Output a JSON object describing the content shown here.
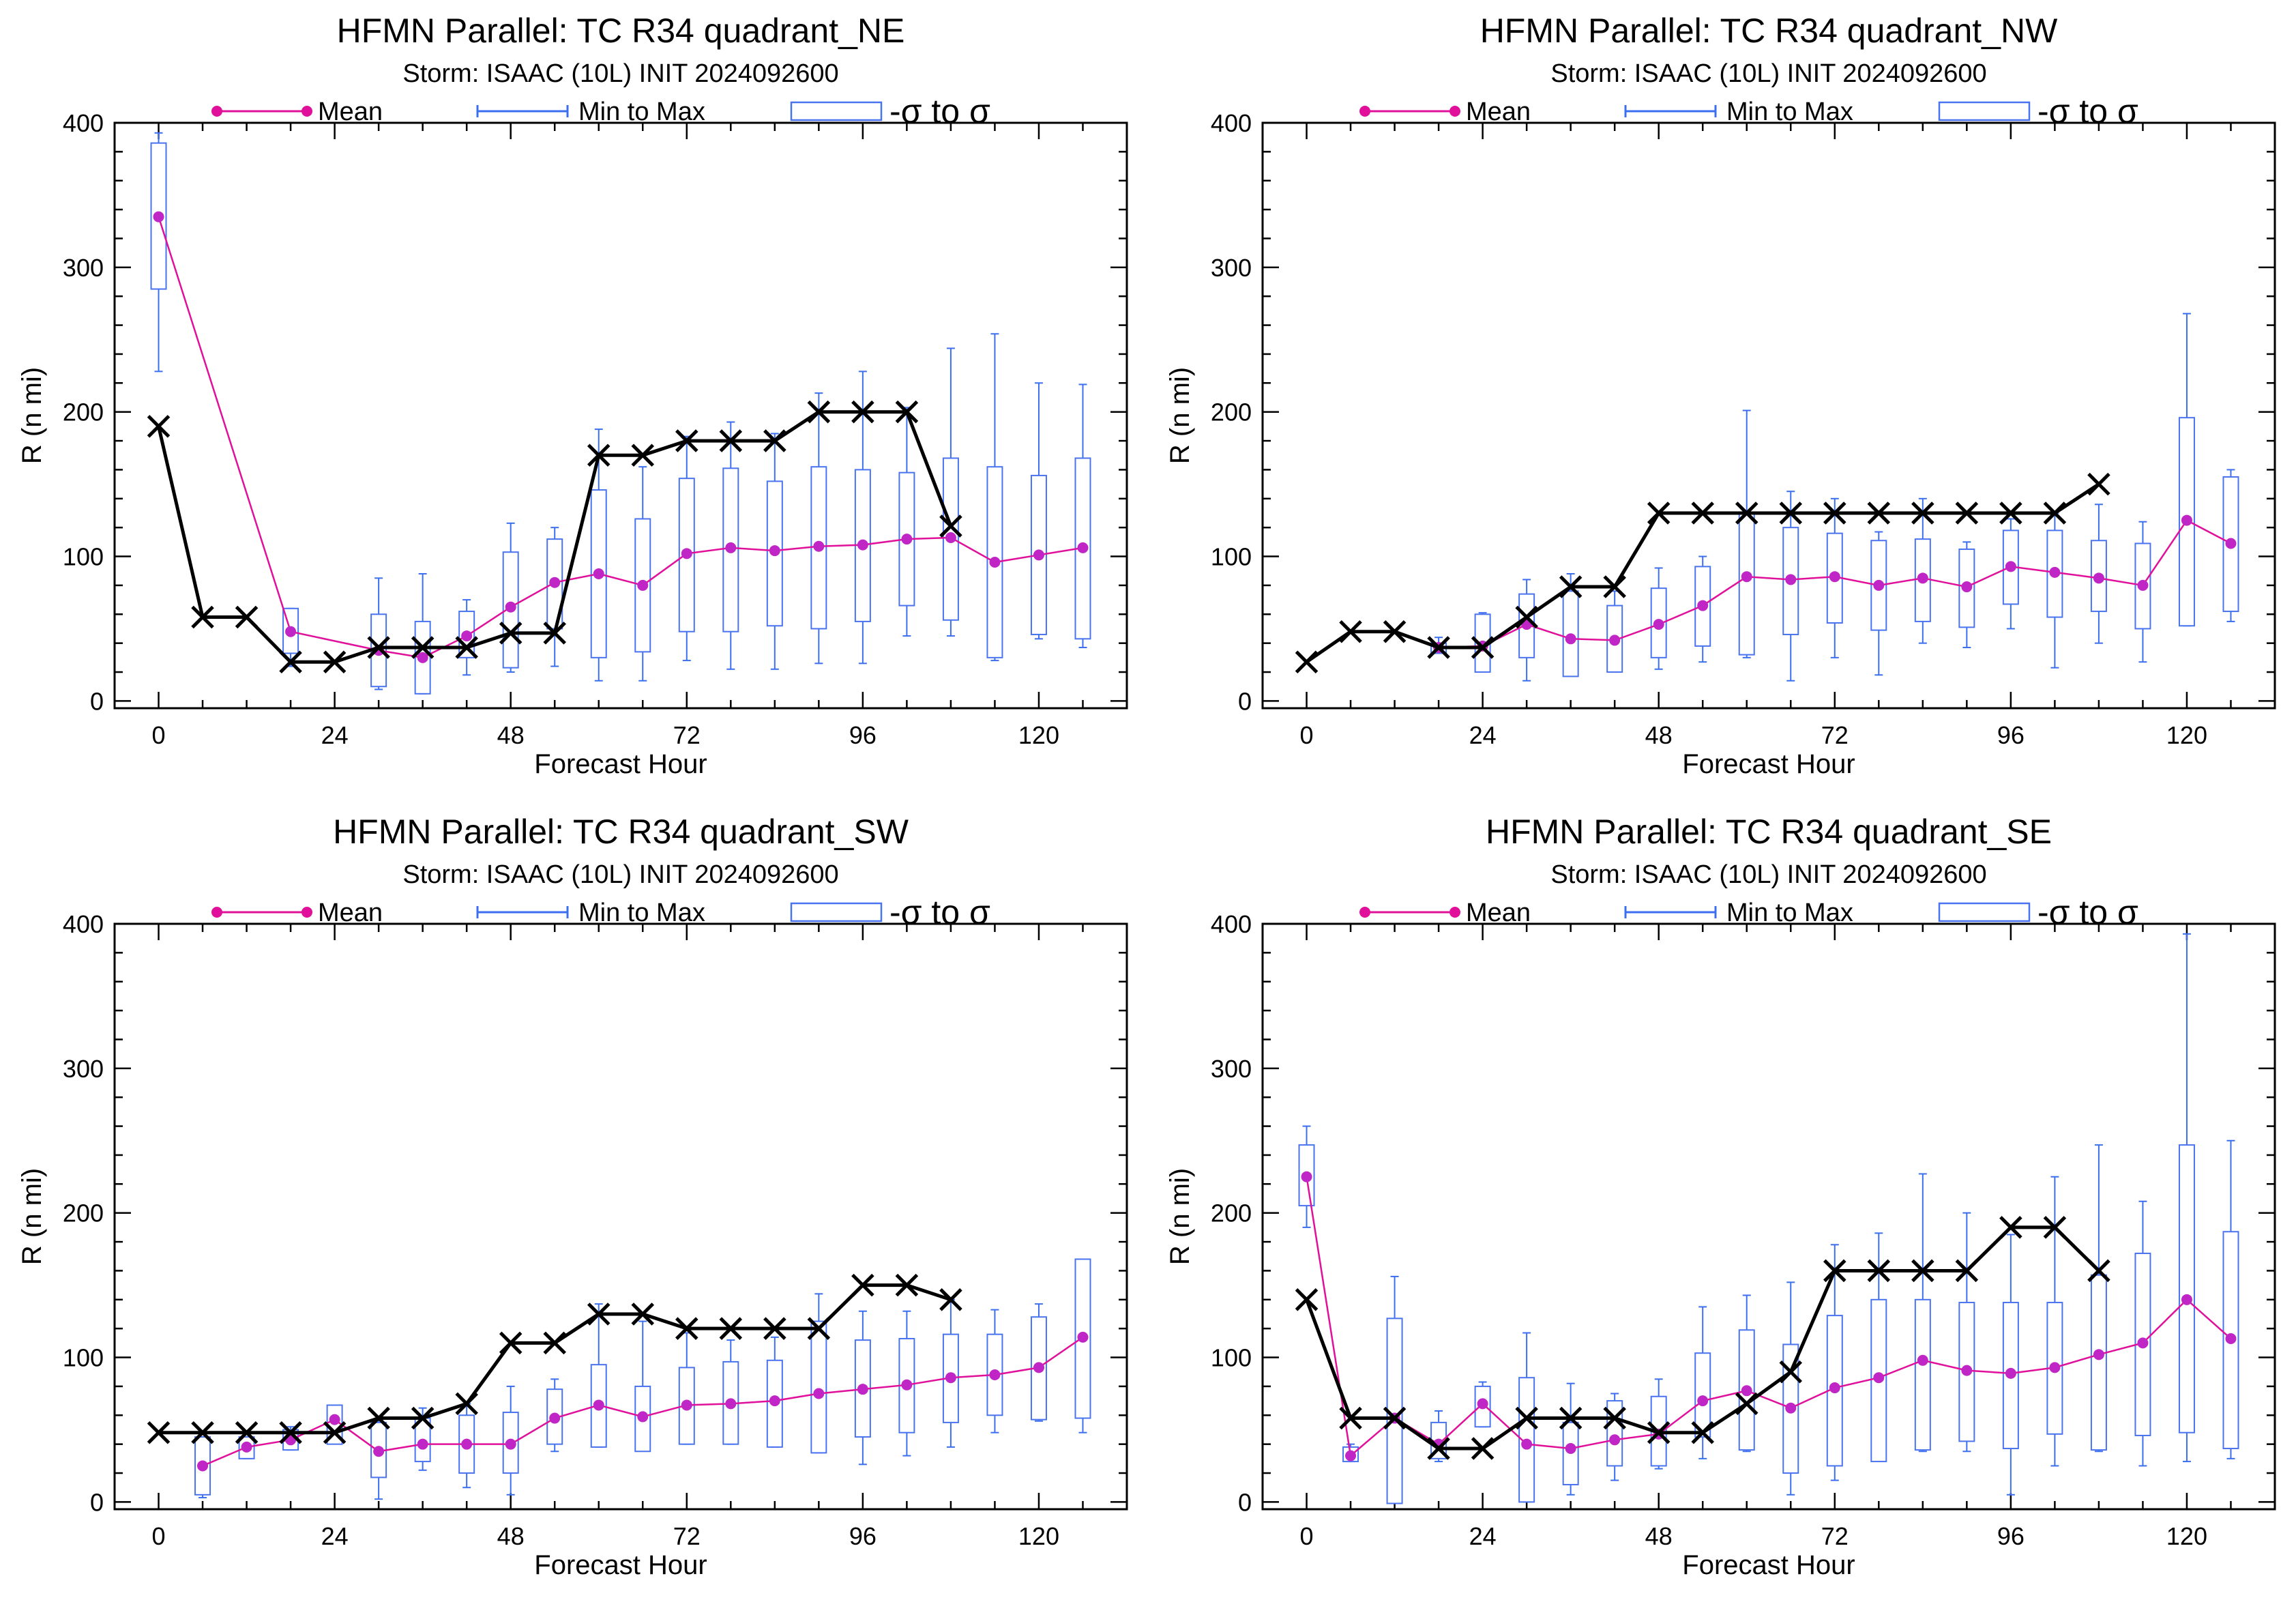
{
  "colors": {
    "mean": "#e0109a",
    "mean_marker": "#c026c6",
    "range": "#3b6ff0",
    "sigma_box": "#4a73f0",
    "observed": "#000000"
  },
  "legend_labels": {
    "mean": "Mean",
    "range": "Min to Max",
    "sigma": "-σ to σ"
  },
  "chart_data": [
    {
      "type": "box",
      "title": "HFMN Parallel: TC  R34 quadrant_NE",
      "subtitle": "Storm: ISAAC (10L) INIT 2024092600",
      "xlabel": "Forecast Hour",
      "ylabel": "R (n mi)",
      "xlim": [
        -6,
        132
      ],
      "ylim": [
        -5,
        400
      ],
      "xticks": [
        "0",
        "24",
        "48",
        "72",
        "96",
        "120"
      ],
      "yticks": [
        "0",
        "100",
        "200",
        "300",
        "400"
      ],
      "grid": false,
      "legend_position": "top",
      "forecast": {
        "x": [
          0,
          18,
          30,
          36,
          42,
          48,
          54,
          60,
          66,
          72,
          78,
          84,
          90,
          96,
          102,
          108,
          114,
          120,
          126
        ],
        "mean": [
          335,
          48,
          35,
          30,
          45,
          65,
          82,
          88,
          80,
          102,
          106,
          104,
          107,
          108,
          112,
          113,
          96,
          101,
          106
        ],
        "min": [
          228,
          24,
          8,
          5,
          18,
          20,
          24,
          14,
          14,
          28,
          22,
          22,
          26,
          26,
          45,
          45,
          28,
          43,
          37
        ],
        "max": [
          393,
          64,
          85,
          88,
          70,
          123,
          120,
          188,
          162,
          183,
          193,
          185,
          213,
          228,
          203,
          244,
          254,
          220,
          219
        ],
        "sd_low": [
          285,
          33,
          10,
          5,
          30,
          23,
          50,
          30,
          34,
          48,
          48,
          52,
          50,
          55,
          66,
          56,
          30,
          46,
          43
        ],
        "sd_high": [
          386,
          64,
          60,
          55,
          62,
          103,
          112,
          146,
          126,
          154,
          161,
          152,
          162,
          160,
          158,
          168,
          162,
          156,
          168
        ]
      },
      "observed": {
        "x": [
          0,
          6,
          12,
          18,
          24,
          30,
          36,
          42,
          48,
          54,
          60,
          66,
          72,
          78,
          84,
          90,
          96,
          102,
          108
        ],
        "y": [
          190,
          58,
          58,
          27,
          27,
          37,
          37,
          37,
          47,
          47,
          170,
          170,
          180,
          180,
          180,
          200,
          200,
          200,
          121
        ]
      }
    },
    {
      "type": "box",
      "title": "HFMN Parallel: TC  R34 quadrant_NW",
      "subtitle": "Storm: ISAAC (10L) INIT 2024092600",
      "xlabel": "Forecast Hour",
      "ylabel": "R (n mi)",
      "xlim": [
        -6,
        132
      ],
      "ylim": [
        -5,
        400
      ],
      "xticks": [
        "0",
        "24",
        "48",
        "72",
        "96",
        "120"
      ],
      "yticks": [
        "0",
        "100",
        "200",
        "300",
        "400"
      ],
      "grid": false,
      "legend_position": "top",
      "forecast": {
        "x": [
          18,
          24,
          30,
          36,
          42,
          48,
          54,
          60,
          66,
          72,
          78,
          84,
          90,
          96,
          102,
          108,
          114,
          120,
          126
        ],
        "mean": [
          37,
          38,
          53,
          43,
          42,
          53,
          66,
          86,
          84,
          86,
          80,
          85,
          79,
          93,
          89,
          85,
          80,
          125,
          109
        ],
        "min": [
          33,
          21,
          14,
          18,
          20,
          22,
          27,
          30,
          14,
          30,
          18,
          40,
          37,
          50,
          23,
          40,
          27,
          52,
          55
        ],
        "max": [
          44,
          61,
          84,
          88,
          76,
          92,
          100,
          201,
          145,
          140,
          117,
          140,
          110,
          126,
          130,
          136,
          124,
          268,
          160
        ],
        "sd_low": [
          33,
          20,
          30,
          17,
          20,
          30,
          38,
          32,
          46,
          54,
          49,
          55,
          51,
          67,
          58,
          62,
          50,
          52,
          62
        ],
        "sd_high": [
          40,
          60,
          74,
          76,
          66,
          78,
          93,
          130,
          120,
          116,
          111,
          112,
          105,
          118,
          118,
          111,
          109,
          196,
          155
        ]
      },
      "observed": {
        "x": [
          0,
          6,
          12,
          18,
          24,
          30,
          36,
          42,
          48,
          54,
          60,
          66,
          72,
          78,
          84,
          90,
          96,
          102,
          108
        ],
        "y": [
          27,
          48,
          48,
          37,
          37,
          58,
          79,
          79,
          130,
          130,
          130,
          130,
          130,
          130,
          130,
          130,
          130,
          130,
          150
        ]
      }
    },
    {
      "type": "box",
      "title": "HFMN Parallel: TC  R34 quadrant_SW",
      "subtitle": "Storm: ISAAC (10L) INIT 2024092600",
      "xlabel": "Forecast Hour",
      "ylabel": "R (n mi)",
      "xlim": [
        -6,
        132
      ],
      "ylim": [
        -5,
        400
      ],
      "xticks": [
        "0",
        "24",
        "48",
        "72",
        "96",
        "120"
      ],
      "yticks": [
        "0",
        "100",
        "200",
        "300",
        "400"
      ],
      "grid": false,
      "legend_position": "top",
      "forecast": {
        "x": [
          6,
          12,
          18,
          24,
          30,
          36,
          42,
          48,
          54,
          60,
          66,
          72,
          78,
          84,
          90,
          96,
          102,
          108,
          114,
          120,
          126
        ],
        "mean": [
          25,
          38,
          43,
          57,
          35,
          40,
          40,
          40,
          58,
          67,
          59,
          67,
          68,
          70,
          75,
          78,
          81,
          86,
          88,
          93,
          114
        ],
        "min": [
          3,
          30,
          36,
          43,
          2,
          22,
          10,
          5,
          35,
          38,
          37,
          40,
          40,
          38,
          34,
          26,
          32,
          38,
          48,
          56,
          48
        ],
        "max": [
          45,
          45,
          52,
          65,
          58,
          65,
          68,
          80,
          85,
          137,
          125,
          117,
          112,
          114,
          144,
          132,
          132,
          140,
          133,
          137,
          168
        ],
        "sd_low": [
          5,
          30,
          36,
          40,
          17,
          28,
          20,
          20,
          40,
          38,
          35,
          40,
          40,
          38,
          34,
          45,
          48,
          55,
          60,
          57,
          58
        ],
        "sd_high": [
          45,
          45,
          50,
          67,
          55,
          58,
          60,
          62,
          78,
          95,
          80,
          93,
          97,
          98,
          125,
          112,
          113,
          116,
          116,
          128,
          168
        ]
      },
      "observed": {
        "x": [
          0,
          6,
          12,
          18,
          24,
          30,
          36,
          42,
          48,
          54,
          60,
          66,
          72,
          78,
          84,
          90,
          96,
          102,
          108
        ],
        "y": [
          48,
          48,
          48,
          48,
          48,
          58,
          58,
          68,
          110,
          110,
          130,
          130,
          120,
          120,
          120,
          120,
          150,
          150,
          140
        ]
      }
    },
    {
      "type": "box",
      "title": "HFMN Parallel: TC  R34 quadrant_SE",
      "subtitle": "Storm: ISAAC (10L) INIT 2024092600",
      "xlabel": "Forecast Hour",
      "ylabel": "R (n mi)",
      "xlim": [
        -6,
        132
      ],
      "ylim": [
        -5,
        400
      ],
      "xticks": [
        "0",
        "24",
        "48",
        "72",
        "96",
        "120"
      ],
      "yticks": [
        "0",
        "100",
        "200",
        "300",
        "400"
      ],
      "grid": false,
      "legend_position": "top",
      "forecast": {
        "x": [
          0,
          6,
          12,
          18,
          24,
          30,
          36,
          42,
          48,
          54,
          60,
          66,
          72,
          78,
          84,
          90,
          96,
          102,
          108,
          114,
          120,
          126
        ],
        "mean": [
          225,
          32,
          58,
          40,
          68,
          40,
          37,
          43,
          47,
          70,
          77,
          65,
          79,
          86,
          98,
          91,
          89,
          93,
          102,
          110,
          140,
          113
        ],
        "min": [
          190,
          28,
          0,
          28,
          52,
          0,
          5,
          15,
          23,
          30,
          35,
          5,
          15,
          32,
          35,
          35,
          5,
          25,
          35,
          25,
          28,
          30
        ],
        "max": [
          260,
          40,
          156,
          63,
          83,
          117,
          82,
          75,
          85,
          135,
          143,
          152,
          178,
          186,
          227,
          200,
          185,
          225,
          247,
          208,
          393,
          250
        ],
        "sd_low": [
          205,
          28,
          -1,
          30,
          52,
          0,
          12,
          25,
          25,
          45,
          36,
          20,
          25,
          28,
          36,
          42,
          37,
          47,
          36,
          46,
          48,
          37
        ],
        "sd_high": [
          247,
          38,
          127,
          55,
          80,
          86,
          55,
          70,
          73,
          103,
          119,
          109,
          129,
          140,
          140,
          138,
          138,
          138,
          157,
          172,
          247,
          187
        ]
      },
      "observed": {
        "x": [
          0,
          6,
          12,
          18,
          24,
          30,
          36,
          42,
          48,
          54,
          60,
          66,
          72,
          78,
          84,
          90,
          96,
          102,
          108
        ],
        "y": [
          140,
          58,
          58,
          37,
          37,
          58,
          58,
          58,
          48,
          48,
          68,
          90,
          160,
          160,
          160,
          160,
          190,
          190,
          160
        ]
      }
    }
  ]
}
